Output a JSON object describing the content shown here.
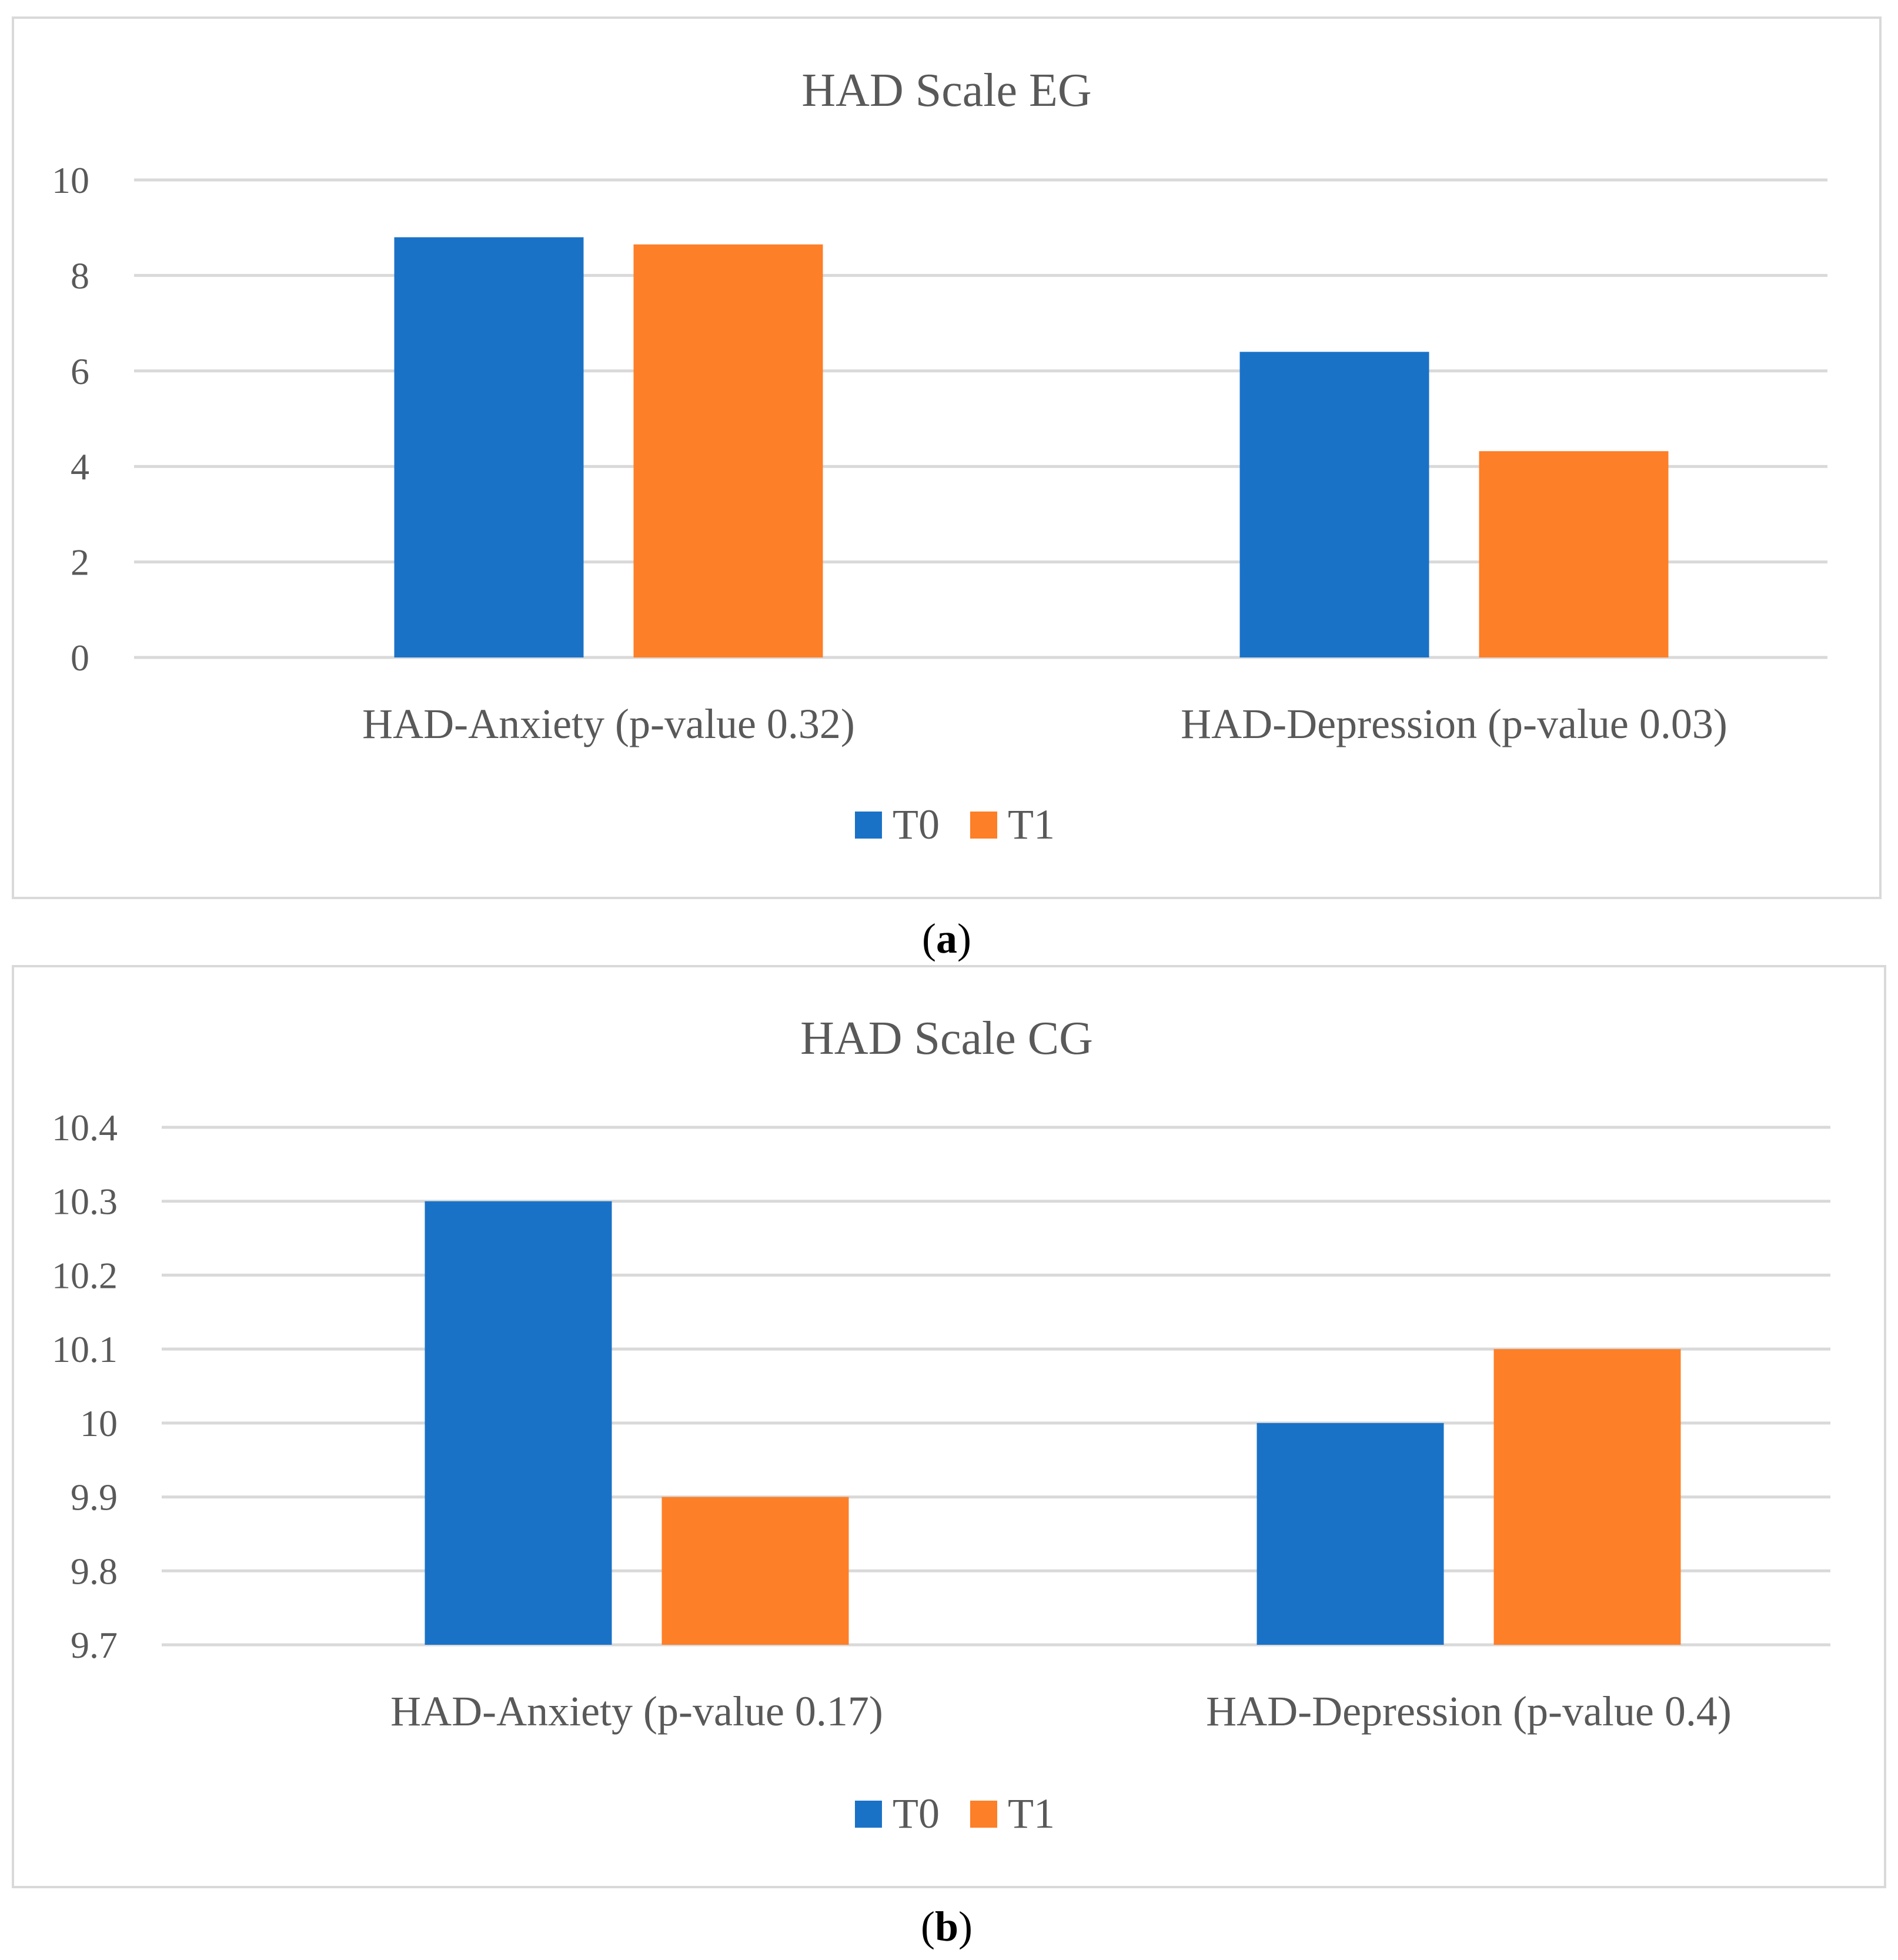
{
  "colors": {
    "T0": "#1a72c7",
    "T1": "#fd7f27"
  },
  "chart_data": [
    {
      "type": "bar",
      "title": "HAD Scale EG",
      "categories": [
        "HAD-Anxiety (p-value 0.32)",
        "HAD-Depression (p-value 0.03)"
      ],
      "series": [
        {
          "name": "T0",
          "values": [
            8.8,
            6.4
          ]
        },
        {
          "name": "T1",
          "values": [
            8.65,
            4.32
          ]
        }
      ],
      "yticks": [
        0,
        2,
        4,
        6,
        8,
        10
      ],
      "ylim": [
        0,
        10
      ],
      "xlabel": "",
      "ylabel": "",
      "grid": true,
      "legend": "bottom-center",
      "caption": {
        "letter": "a"
      }
    },
    {
      "type": "bar",
      "title": "HAD Scale CG",
      "categories": [
        "HAD-Anxiety (p-value 0.17)",
        "HAD-Depression (p-value 0.4)"
      ],
      "series": [
        {
          "name": "T0",
          "values": [
            10.3,
            10.0
          ]
        },
        {
          "name": "T1",
          "values": [
            9.9,
            10.1
          ]
        }
      ],
      "yticks": [
        "9.7",
        "9.8",
        "9.9",
        "10",
        "10.1",
        "10.2",
        "10.3",
        "10.4"
      ],
      "ylim": [
        9.7,
        10.4
      ],
      "xlabel": "",
      "ylabel": "",
      "grid": true,
      "legend": "bottom-center",
      "caption": {
        "letter": "b"
      }
    }
  ]
}
